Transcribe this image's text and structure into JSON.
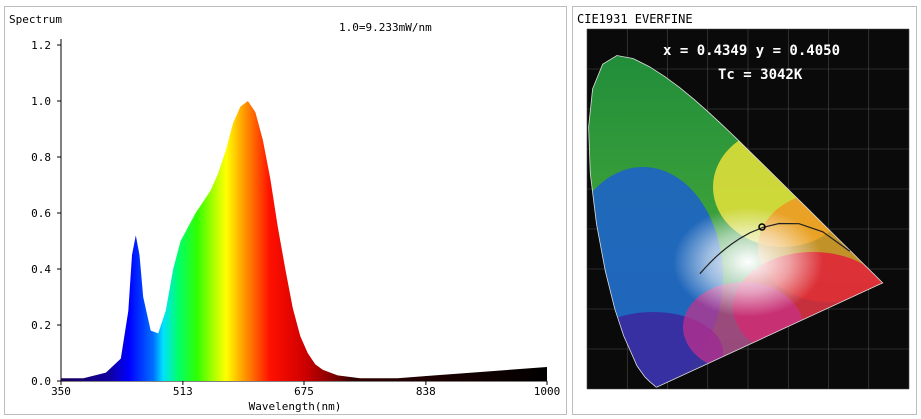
{
  "chart_data": [
    {
      "type": "area",
      "title": "Spectrum",
      "annotation": "1.0=9.233mW/nm",
      "xlabel": "Wavelength(nm)",
      "ylabel": "",
      "xlim": [
        350,
        1000
      ],
      "ylim": [
        0,
        1.2
      ],
      "xticks": [
        "350",
        "513",
        "675",
        "838",
        "1000"
      ],
      "yticks": [
        "0.0",
        "0.2",
        "0.4",
        "0.6",
        "0.8",
        "1.0",
        "1.2"
      ],
      "grid": false,
      "legend": "none",
      "series": [
        {
          "x": [
            350,
            380,
            410,
            430,
            440,
            445,
            450,
            455,
            460,
            470,
            480,
            490,
            500,
            510,
            520,
            530,
            540,
            550,
            560,
            570,
            580,
            590,
            600,
            610,
            620,
            630,
            640,
            650,
            660,
            670,
            680,
            690,
            700,
            720,
            750,
            780,
            800,
            850,
            900,
            950,
            1000
          ],
          "values": [
            0.01,
            0.01,
            0.03,
            0.08,
            0.25,
            0.45,
            0.52,
            0.45,
            0.3,
            0.18,
            0.17,
            0.25,
            0.4,
            0.5,
            0.55,
            0.6,
            0.64,
            0.68,
            0.74,
            0.82,
            0.92,
            0.98,
            1.0,
            0.96,
            0.86,
            0.72,
            0.55,
            0.4,
            0.26,
            0.16,
            0.1,
            0.06,
            0.04,
            0.02,
            0.01,
            0.01,
            0.01,
            0.02,
            0.03,
            0.04,
            0.05
          ]
        }
      ]
    },
    {
      "type": "scatter",
      "title": "CIE1931 EVERFINE",
      "readout": "x = 0.4349 y = 0.4050",
      "cct": "Tc = 3042K",
      "xlim": [
        0,
        0.8
      ],
      "ylim": [
        0,
        0.9
      ],
      "point": {
        "x": 0.4349,
        "y": 0.405
      }
    }
  ]
}
